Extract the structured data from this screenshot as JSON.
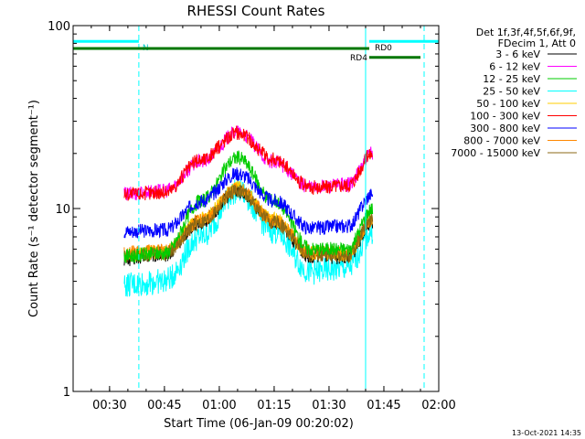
{
  "chart_data": {
    "type": "line",
    "title": "RHESSI Count Rates",
    "xlabel": "Start Time (06-Jan-09 00:20:02)",
    "ylabel": "Count Rate (s⁻¹ detector segment⁻¹)",
    "yscale": "log",
    "ylim": [
      1,
      100
    ],
    "xlim": [
      "00:20:02",
      "02:00:00"
    ],
    "x_ticks": [
      "00:30",
      "00:45",
      "01:00",
      "01:15",
      "01:30",
      "01:45",
      "02:00"
    ],
    "y_ticks": [
      "1",
      "10",
      "100"
    ],
    "grid": false,
    "legend_header": [
      "Det 1f,3f,4f,5f,6f,9f,",
      "FDecim 1, Att 0"
    ],
    "legend_placement": "right",
    "series": [
      {
        "name": "3 - 6 keV",
        "color": "#000000",
        "x": [
          "00:34",
          "00:45",
          "00:55",
          "01:05",
          "01:15",
          "01:25",
          "01:35",
          "01:42"
        ],
        "y": [
          5.3,
          5.6,
          8.5,
          12.5,
          8.5,
          5.5,
          5.4,
          8.5
        ]
      },
      {
        "name": "6 - 12 keV",
        "color": "#ff00ff",
        "x": [
          "00:34",
          "00:45",
          "00:55",
          "01:05",
          "01:15",
          "01:25",
          "01:35",
          "01:42"
        ],
        "y": [
          12.0,
          12.5,
          18.0,
          26.0,
          18.0,
          13.0,
          13.5,
          20.0
        ]
      },
      {
        "name": "12 - 25 keV",
        "color": "#00cc00",
        "x": [
          "00:34",
          "00:45",
          "00:55",
          "01:05",
          "01:15",
          "01:25",
          "01:35",
          "01:42"
        ],
        "y": [
          5.5,
          5.7,
          11.0,
          19.0,
          11.0,
          6.0,
          6.0,
          10.0
        ]
      },
      {
        "name": "25 - 50 keV",
        "color": "#00ffff",
        "x": [
          "00:34",
          "00:45",
          "00:55",
          "01:05",
          "01:15",
          "01:25",
          "01:35",
          "01:42"
        ],
        "y": [
          3.8,
          4.0,
          7.0,
          12.5,
          7.5,
          4.5,
          4.7,
          7.5
        ]
      },
      {
        "name": "50 - 100 keV",
        "color": "#ffcc00",
        "x": [
          "00:34",
          "00:45",
          "00:55",
          "01:05",
          "01:15",
          "01:25",
          "01:35",
          "01:42"
        ],
        "y": [
          5.6,
          5.8,
          8.7,
          13.0,
          8.7,
          5.7,
          5.6,
          8.8
        ]
      },
      {
        "name": "100 - 300 keV",
        "color": "#ff0000",
        "x": [
          "00:34",
          "00:45",
          "00:55",
          "01:05",
          "01:15",
          "01:25",
          "01:35",
          "01:42"
        ],
        "y": [
          12.0,
          12.3,
          18.5,
          26.0,
          18.5,
          13.0,
          13.5,
          20.0
        ]
      },
      {
        "name": "300 - 800 keV",
        "color": "#0000ff",
        "x": [
          "00:34",
          "00:45",
          "00:55",
          "01:05",
          "01:15",
          "01:25",
          "01:35",
          "01:42"
        ],
        "y": [
          7.5,
          7.6,
          11.0,
          15.5,
          11.0,
          7.8,
          8.0,
          12.0
        ]
      },
      {
        "name": "800 - 7000 keV",
        "color": "#ff8800",
        "x": [
          "00:34",
          "00:45",
          "00:55",
          "01:05",
          "01:15",
          "01:25",
          "01:35",
          "01:42"
        ],
        "y": [
          5.7,
          5.9,
          8.6,
          12.8,
          8.6,
          5.8,
          5.7,
          8.8
        ]
      },
      {
        "name": "7000 - 15000 keV",
        "color": "#8b6914",
        "x": [
          "00:34",
          "00:45",
          "00:55",
          "01:05",
          "01:15",
          "01:25",
          "01:35",
          "01:42"
        ],
        "y": [
          5.5,
          5.7,
          8.4,
          12.5,
          8.4,
          5.6,
          5.5,
          8.6
        ]
      }
    ],
    "annotations": [
      {
        "label": "N",
        "color": "#00ffff",
        "x_start": "00:20:02",
        "x_end": "00:38",
        "y": 82
      },
      {
        "label": "RD0",
        "color": "#00ffff",
        "x_start": "01:41",
        "x_end": "02:00",
        "y": 82
      },
      {
        "label": "",
        "color": "#007700",
        "x_start": "00:20:02",
        "x_end": "01:41",
        "y": 75
      },
      {
        "label": "RD4",
        "color": "#007700",
        "x_start": "01:41",
        "x_end": "01:55",
        "y": 67
      }
    ],
    "vertical_markers": [
      {
        "x": "00:20:02",
        "style": "solid",
        "color": "#00ffff"
      },
      {
        "x": "00:38",
        "style": "dashed",
        "color": "#00ffff"
      },
      {
        "x": "01:40",
        "style": "solid",
        "color": "#00ffff"
      },
      {
        "x": "01:56",
        "style": "dashed",
        "color": "#00ffff"
      }
    ]
  },
  "timestamp": "13-Oct-2021 14:35"
}
